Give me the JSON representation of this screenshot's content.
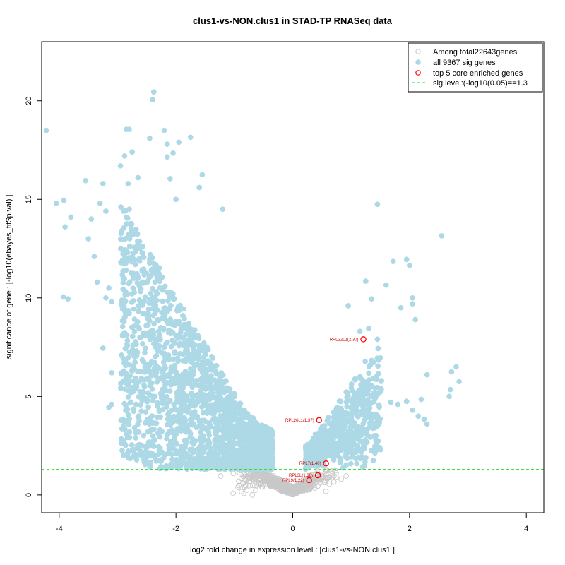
{
  "chart_data": {
    "type": "scatter",
    "title": "clus1-vs-NON.clus1 in STAD-TP RNASeq data",
    "xlabel": "log2 fold change in expression level : [clus1-vs-NON.clus1 ]",
    "ylabel": "significance of gene : [-log10(ebayes_fit$p.val) ]",
    "xlim": [
      -4.3,
      4.3
    ],
    "ylim": [
      -0.9,
      23.0
    ],
    "xticks": [
      -4,
      -2,
      0,
      2,
      4
    ],
    "yticks": [
      0,
      5,
      10,
      15,
      20
    ],
    "legend_position": "top-right",
    "legend": [
      {
        "label": "Among total22643genes",
        "marker": "open-circle",
        "color": "#c8c8c8"
      },
      {
        "label": "all 9367 sig genes",
        "marker": "filled-circle",
        "color": "#add8e6"
      },
      {
        "label": "top 5 core enriched genes",
        "marker": "open-circle",
        "color": "#ff0000"
      },
      {
        "label": "sig level:(-log10(0.05)==1.3",
        "marker": "dashed-line",
        "color": "#00cc00"
      }
    ],
    "threshold_y": 1.3,
    "colors": {
      "nonsig": "#c8c8c8",
      "sig": "#add8e6",
      "core": "#ff0000",
      "core_label": "#cc0000",
      "threshold": "#22dd22"
    },
    "series": [
      {
        "name": "all 9367 sig genes",
        "notable_points": [
          [
            -4.22,
            18.5
          ],
          [
            -4.05,
            14.8
          ],
          [
            -3.92,
            14.95
          ],
          [
            -3.9,
            13.6
          ],
          [
            -3.8,
            14.1
          ],
          [
            -3.93,
            10.05
          ],
          [
            -3.85,
            9.95
          ],
          [
            -3.55,
            15.95
          ],
          [
            -3.45,
            14.0
          ],
          [
            -3.5,
            13.0
          ],
          [
            -3.4,
            12.1
          ],
          [
            -3.3,
            14.8
          ],
          [
            -3.25,
            15.8
          ],
          [
            -3.2,
            14.4
          ],
          [
            -3.35,
            10.8
          ],
          [
            -3.2,
            10.0
          ],
          [
            -3.15,
            10.5
          ],
          [
            -3.1,
            9.8
          ],
          [
            -3.25,
            7.45
          ],
          [
            -3.1,
            6.2
          ],
          [
            -3.15,
            4.45
          ],
          [
            -3.1,
            4.6
          ],
          [
            -2.95,
            16.7
          ],
          [
            -2.88,
            17.2
          ],
          [
            -2.85,
            18.55
          ],
          [
            -2.8,
            18.55
          ],
          [
            -2.75,
            17.4
          ],
          [
            -2.82,
            15.8
          ],
          [
            -2.9,
            14.4
          ],
          [
            -2.8,
            14.5
          ],
          [
            -2.65,
            16.1
          ],
          [
            -2.45,
            18.1
          ],
          [
            -2.38,
            20.45
          ],
          [
            -2.4,
            20.05
          ],
          [
            -2.2,
            18.5
          ],
          [
            -2.15,
            17.8
          ],
          [
            -2.15,
            17.15
          ],
          [
            -2.05,
            17.35
          ],
          [
            -1.95,
            17.9
          ],
          [
            -1.75,
            18.15
          ],
          [
            -1.55,
            16.25
          ],
          [
            -1.6,
            15.6
          ],
          [
            -1.2,
            14.5
          ],
          [
            -2.1,
            16.05
          ],
          [
            -2.0,
            15.0
          ],
          [
            1.45,
            14.75
          ],
          [
            2.55,
            13.15
          ],
          [
            1.72,
            11.85
          ],
          [
            1.95,
            11.95
          ],
          [
            2.0,
            11.65
          ],
          [
            1.25,
            10.85
          ],
          [
            1.6,
            10.65
          ],
          [
            1.85,
            9.5
          ],
          [
            2.05,
            9.7
          ],
          [
            2.05,
            10.0
          ],
          [
            2.1,
            8.9
          ],
          [
            2.72,
            6.25
          ],
          [
            2.8,
            6.5
          ],
          [
            2.85,
            5.75
          ],
          [
            2.7,
            5.35
          ],
          [
            2.68,
            5.0
          ],
          [
            2.3,
            6.1
          ],
          [
            2.2,
            4.85
          ],
          [
            2.25,
            3.85
          ],
          [
            2.3,
            3.6
          ],
          [
            2.15,
            4.0
          ],
          [
            2.05,
            4.3
          ],
          [
            1.95,
            4.75
          ],
          [
            1.8,
            4.6
          ],
          [
            1.68,
            4.7
          ],
          [
            1.52,
            5.8
          ],
          [
            1.45,
            7.9
          ],
          [
            1.3,
            8.45
          ],
          [
            1.35,
            9.95
          ],
          [
            1.15,
            8.3
          ],
          [
            0.95,
            9.6
          ]
        ]
      }
    ],
    "core_genes": [
      {
        "label": "RPL22L1(2.30)",
        "x": 1.21,
        "y": 7.9
      },
      {
        "label": "RPL26L1(1.37)",
        "x": 0.45,
        "y": 3.8
      },
      {
        "label": "RPL7(1.40)",
        "x": 0.57,
        "y": 1.6
      },
      {
        "label": "RPL3L(1.38)",
        "x": 0.43,
        "y": 1.0
      },
      {
        "label": "RPL9(1.22)",
        "x": 0.28,
        "y": 0.75
      }
    ]
  }
}
